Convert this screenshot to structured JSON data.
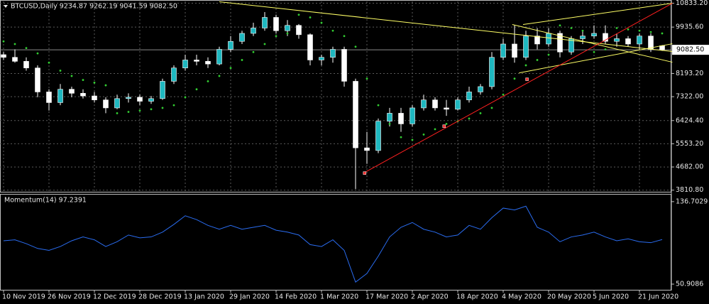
{
  "chart_data": [
    {
      "type": "candlestick",
      "title": "BTCUSD,Daily  9234.87 9262.19 9041.59 9082.50",
      "categories": [
        "10 Nov 2019",
        null,
        null,
        null,
        "26 Nov 2019",
        null,
        null,
        null,
        "12 Dec 2019",
        null,
        null,
        null,
        "28 Dec 2019",
        null,
        null,
        null,
        "13 Jan 2020",
        null,
        null,
        null,
        "29 Jan 2020",
        null,
        null,
        null,
        "14 Feb 2020",
        null,
        null,
        null,
        "1 Mar 2020",
        null,
        null,
        null,
        "17 Mar 2020",
        null,
        null,
        null,
        "2 Apr 2020",
        null,
        null,
        null,
        "18 Apr 2020",
        null,
        null,
        null,
        "4 May 2020",
        null,
        null,
        null,
        "20 May 2020",
        null,
        null,
        null,
        "5 Jun 2020",
        null,
        null,
        null,
        "21 Jun 2020",
        null,
        null
      ],
      "open": [
        8900,
        8800,
        8650,
        8400,
        7500,
        7100,
        7600,
        7450,
        7350,
        7200,
        6900,
        7250,
        7300,
        7150,
        7250,
        7900,
        8400,
        8700,
        8650,
        8550,
        9100,
        9400,
        9700,
        9900,
        10300,
        9800,
        10000,
        9650,
        8700,
        8800,
        9100,
        7900,
        5400,
        5300,
        6400,
        6700,
        6300,
        6900,
        7200,
        6900,
        6850,
        7200,
        7500,
        7700,
        8800,
        9300,
        8800,
        9600,
        9300,
        9700,
        9000,
        9500,
        9600,
        9700,
        9400,
        9500,
        9300,
        9600,
        9234.87
      ],
      "high": [
        9000,
        9100,
        8800,
        8500,
        7600,
        7800,
        7700,
        7600,
        7500,
        7300,
        7400,
        7450,
        7400,
        7350,
        8000,
        8500,
        8900,
        8900,
        8800,
        9200,
        9600,
        9800,
        10100,
        10500,
        10400,
        10200,
        10050,
        9700,
        8900,
        9200,
        9200,
        8000,
        6000,
        6500,
        6900,
        6900,
        7000,
        7400,
        7300,
        7200,
        7300,
        7700,
        7800,
        9000,
        9500,
        10000,
        9800,
        9900,
        9900,
        9800,
        9600,
        9800,
        10000,
        10000,
        9700,
        9600,
        9700,
        9700,
        9262.19
      ],
      "low": [
        8700,
        8600,
        8300,
        7300,
        6800,
        7000,
        7300,
        7250,
        7100,
        6700,
        6850,
        7100,
        7000,
        7050,
        7200,
        7800,
        8300,
        8500,
        8400,
        8500,
        9000,
        9300,
        9600,
        9800,
        9700,
        9600,
        9500,
        8500,
        8500,
        8600,
        7700,
        3850,
        4800,
        5200,
        6200,
        6000,
        6200,
        6800,
        6800,
        6600,
        6800,
        7100,
        7400,
        7600,
        8700,
        8600,
        8700,
        9100,
        9200,
        8800,
        8900,
        9300,
        9500,
        9300,
        9200,
        9200,
        9100,
        9000,
        9041.59
      ],
      "close": [
        8800,
        8650,
        8400,
        7500,
        7100,
        7600,
        7450,
        7350,
        7200,
        6900,
        7250,
        7300,
        7150,
        7250,
        7900,
        8400,
        8700,
        8650,
        8550,
        9100,
        9400,
        9700,
        9900,
        10300,
        9800,
        10000,
        9650,
        8700,
        8800,
        9100,
        7900,
        5400,
        5300,
        6400,
        6700,
        6300,
        6900,
        7200,
        6900,
        6850,
        7200,
        7500,
        7700,
        8800,
        9300,
        8800,
        9600,
        9300,
        9700,
        9000,
        9500,
        9600,
        9700,
        9400,
        9500,
        9300,
        9600,
        9100,
        9082.5
      ],
      "sar": [
        9400,
        9300,
        9150,
        8950,
        8600,
        8300,
        8100,
        7950,
        7850,
        7750,
        6700,
        6750,
        6800,
        6850,
        6900,
        7000,
        7300,
        7600,
        7900,
        8100,
        8400,
        8700,
        9000,
        9300,
        9600,
        9700,
        10400,
        10300,
        10100,
        9800,
        9600,
        9200,
        8000,
        7000,
        6300,
        5800,
        5700,
        5900,
        6100,
        6300,
        6400,
        6500,
        6700,
        6900,
        7400,
        8000,
        8500,
        8700,
        8900,
        10000,
        9900,
        9800,
        9000,
        9100,
        9900,
        9850,
        9800,
        9750,
        9700
      ],
      "up_color": "#1fb8c0",
      "down_color": "#ffffff",
      "sar_color": "#32cd32",
      "ylim": [
        3750,
        10900
      ],
      "yticks": [
        {
          "value": 3810.8,
          "label": "3810.80"
        },
        {
          "value": 4682,
          "label": "4682.00"
        },
        {
          "value": 5553.2,
          "label": "5553.20"
        },
        {
          "value": 6424.4,
          "label": "6424.40"
        },
        {
          "value": 7322,
          "label": "7322.00"
        },
        {
          "value": 8193.2,
          "label": "8193.20"
        },
        {
          "value": 9935.6,
          "label": "9935.60"
        },
        {
          "value": 10833.2,
          "label": "10833.20"
        }
      ],
      "price_line": {
        "value": 9082.5,
        "label": "9082.50"
      },
      "lines": [
        {
          "color": "#ffff66",
          "from": [
            19,
            10886
          ],
          "to": [
            58.9,
            9020
          ]
        },
        {
          "color": "#ffff66",
          "from": [
            44.8,
            10032
          ],
          "to": [
            58.9,
            8617
          ]
        },
        {
          "color": "#ffff66",
          "from": [
            45.4,
            8216
          ],
          "to": [
            58.9,
            9311
          ]
        },
        {
          "color": "#ffff66",
          "from": [
            45.75,
            10032
          ],
          "to": [
            58.9,
            10833
          ]
        },
        {
          "color": "#ff2020",
          "from": [
            31.7,
            4452
          ],
          "to": [
            58.9,
            10833
          ]
        }
      ],
      "points": {
        "color": "#ff3030",
        "x": [
          31.8,
          38.8,
          46.1
        ],
        "y": [
          4452,
          6214,
          7976
        ]
      },
      "grid": true
    },
    {
      "type": "line",
      "title": "Momentum(14) 97.2391",
      "color": "#2a6cf0",
      "values": [
        96,
        97,
        93,
        88,
        86,
        90,
        96,
        100,
        97,
        90,
        95,
        102,
        99,
        100,
        105,
        113,
        122,
        118,
        112,
        108,
        112,
        108,
        110,
        112,
        107,
        105,
        102,
        92,
        90,
        97,
        86,
        53,
        62,
        80,
        100,
        110,
        115,
        108,
        105,
        100,
        102,
        112,
        108,
        120,
        130,
        128,
        132,
        110,
        105,
        95,
        100,
        102,
        105,
        100,
        96,
        98,
        95,
        94,
        97.2391
      ],
      "ylim": [
        45,
        144
      ],
      "yticks": [
        {
          "value": 50.9086,
          "label": "50.9086"
        },
        {
          "value": 136.7029,
          "label": "136.7029"
        }
      ]
    }
  ]
}
